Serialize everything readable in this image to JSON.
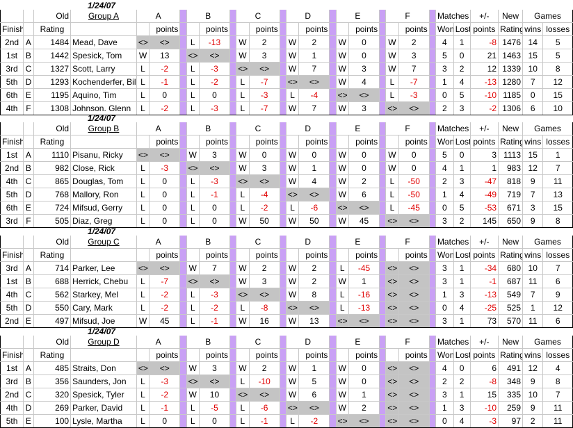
{
  "header": {
    "finish": "Finish",
    "old": "Old",
    "rating": "Rating",
    "cols": [
      "A",
      "B",
      "C",
      "D",
      "E",
      "F"
    ],
    "points": "points",
    "matches": "Matches",
    "won": "Won",
    "lost": "Lost",
    "pm": "+/-",
    "pts": "points",
    "new": "New",
    "new_rating": "Rating",
    "games": "Games",
    "wins": "wins",
    "losses": "losses",
    "self_mark": "<>"
  },
  "groups": [
    {
      "date": "1/24/07",
      "name": "Group A",
      "players": [
        {
          "finish": "2nd",
          "letter": "A",
          "old": "1484",
          "name": "Mead, Dave",
          "res": [
            [
              "<>",
              "<>"
            ],
            [
              "L",
              "-13"
            ],
            [
              "W",
              "2"
            ],
            [
              "W",
              "2"
            ],
            [
              "W",
              "0"
            ],
            [
              "W",
              "2"
            ]
          ],
          "won": "4",
          "lost": "1",
          "pm": "-8",
          "new": "1476",
          "wins": "14",
          "losses": "5"
        },
        {
          "finish": "1st",
          "letter": "B",
          "old": "1442",
          "name": "Spesick, Tom",
          "res": [
            [
              "W",
              "13"
            ],
            [
              "<>",
              "<>"
            ],
            [
              "W",
              "3"
            ],
            [
              "W",
              "1"
            ],
            [
              "W",
              "0"
            ],
            [
              "W",
              "3"
            ]
          ],
          "won": "5",
          "lost": "0",
          "pm": "21",
          "new": "1463",
          "wins": "15",
          "losses": "5"
        },
        {
          "finish": "3rd",
          "letter": "C",
          "old": "1327",
          "name": "Scott, Larry",
          "res": [
            [
              "L",
              "-2"
            ],
            [
              "L",
              "-3"
            ],
            [
              "<>",
              "<>"
            ],
            [
              "W",
              "7"
            ],
            [
              "W",
              "3"
            ],
            [
              "W",
              "7"
            ]
          ],
          "won": "3",
          "lost": "2",
          "pm": "12",
          "new": "1339",
          "wins": "10",
          "losses": "8"
        },
        {
          "finish": "5th",
          "letter": "D",
          "old": "1293",
          "name": "Kochenderfer, Bill",
          "res": [
            [
              "L",
              "-1"
            ],
            [
              "L",
              "-2"
            ],
            [
              "L",
              "-7"
            ],
            [
              "<>",
              "<>"
            ],
            [
              "W",
              "4"
            ],
            [
              "L",
              "-7"
            ]
          ],
          "won": "1",
          "lost": "4",
          "pm": "-13",
          "new": "1280",
          "wins": "7",
          "losses": "12"
        },
        {
          "finish": "6th",
          "letter": "E",
          "old": "1195",
          "name": "Aquino, Tim",
          "res": [
            [
              "L",
              "0"
            ],
            [
              "L",
              "0"
            ],
            [
              "L",
              "-3"
            ],
            [
              "L",
              "-4"
            ],
            [
              "<>",
              "<>"
            ],
            [
              "L",
              "-3"
            ]
          ],
          "won": "0",
          "lost": "5",
          "pm": "-10",
          "new": "1185",
          "wins": "0",
          "losses": "15"
        },
        {
          "finish": "4th",
          "letter": "F",
          "old": "1308",
          "name": "Johnson. Glenn",
          "res": [
            [
              "L",
              "-2"
            ],
            [
              "L",
              "-3"
            ],
            [
              "L",
              "-7"
            ],
            [
              "W",
              "7"
            ],
            [
              "W",
              "3"
            ],
            [
              "<>",
              "<>"
            ]
          ],
          "won": "2",
          "lost": "3",
          "pm": "-2",
          "new": "1306",
          "wins": "6",
          "losses": "10"
        }
      ]
    },
    {
      "date": "1/24/07",
      "name": "Group B",
      "players": [
        {
          "finish": "1st",
          "letter": "A",
          "old": "1110",
          "name": "Pisanu, Ricky",
          "res": [
            [
              "<>",
              "<>"
            ],
            [
              "W",
              "3"
            ],
            [
              "W",
              "0"
            ],
            [
              "W",
              "0"
            ],
            [
              "W",
              "0"
            ],
            [
              "W",
              "0"
            ]
          ],
          "won": "5",
          "lost": "0",
          "pm": "3",
          "new": "1113",
          "wins": "15",
          "losses": "1"
        },
        {
          "finish": "2nd",
          "letter": "B",
          "old": "982",
          "name": "Close, Rick",
          "res": [
            [
              "L",
              "-3"
            ],
            [
              "<>",
              "<>"
            ],
            [
              "W",
              "3"
            ],
            [
              "W",
              "1"
            ],
            [
              "W",
              "0"
            ],
            [
              "W",
              "0"
            ]
          ],
          "won": "4",
          "lost": "1",
          "pm": "1",
          "new": "983",
          "wins": "12",
          "losses": "7"
        },
        {
          "finish": "4th",
          "letter": "C",
          "old": "865",
          "name": "Douglas, Tom",
          "res": [
            [
              "L",
              "0"
            ],
            [
              "L",
              "-3"
            ],
            [
              "<>",
              "<>"
            ],
            [
              "W",
              "4"
            ],
            [
              "W",
              "2"
            ],
            [
              "L",
              "-50"
            ]
          ],
          "won": "2",
          "lost": "3",
          "pm": "-47",
          "new": "818",
          "wins": "9",
          "losses": "11"
        },
        {
          "finish": "5th",
          "letter": "D",
          "old": "768",
          "name": "Mallory, Ron",
          "res": [
            [
              "L",
              "0"
            ],
            [
              "L",
              "-1"
            ],
            [
              "L",
              "-4"
            ],
            [
              "<>",
              "<>"
            ],
            [
              "W",
              "6"
            ],
            [
              "L",
              "-50"
            ]
          ],
          "won": "1",
          "lost": "4",
          "pm": "-49",
          "new": "719",
          "wins": "7",
          "losses": "13"
        },
        {
          "finish": "6th",
          "letter": "E",
          "old": "724",
          "name": "Mifsud, Gerry",
          "res": [
            [
              "L",
              "0"
            ],
            [
              "L",
              "0"
            ],
            [
              "L",
              "-2"
            ],
            [
              "L",
              "-6"
            ],
            [
              "<>",
              "<>"
            ],
            [
              "L",
              "-45"
            ]
          ],
          "won": "0",
          "lost": "5",
          "pm": "-53",
          "new": "671",
          "wins": "3",
          "losses": "15"
        },
        {
          "finish": "3rd",
          "letter": "F",
          "old": "505",
          "name": "Diaz, Greg",
          "res": [
            [
              "L",
              "0"
            ],
            [
              "L",
              "0"
            ],
            [
              "W",
              "50"
            ],
            [
              "W",
              "50"
            ],
            [
              "W",
              "45"
            ],
            [
              "<>",
              "<>"
            ]
          ],
          "won": "3",
          "lost": "2",
          "pm": "145",
          "new": "650",
          "wins": "9",
          "losses": "8"
        }
      ]
    },
    {
      "date": "1/24/07",
      "name": "Group C",
      "players": [
        {
          "finish": "3rd",
          "letter": "A",
          "old": "714",
          "name": "Parker, Lee",
          "res": [
            [
              "<>",
              "<>"
            ],
            [
              "W",
              "7"
            ],
            [
              "W",
              "2"
            ],
            [
              "W",
              "2"
            ],
            [
              "L",
              "-45"
            ],
            [
              "<>",
              "<>"
            ]
          ],
          "won": "3",
          "lost": "1",
          "pm": "-34",
          "new": "680",
          "wins": "10",
          "losses": "7"
        },
        {
          "finish": "1st",
          "letter": "B",
          "old": "688",
          "name": "Herrick, Chebu",
          "res": [
            [
              "L",
              "-7"
            ],
            [
              "<>",
              "<>"
            ],
            [
              "W",
              "3"
            ],
            [
              "W",
              "2"
            ],
            [
              "W",
              "1"
            ],
            [
              "<>",
              "<>"
            ]
          ],
          "won": "3",
          "lost": "1",
          "pm": "-1",
          "new": "687",
          "wins": "11",
          "losses": "6"
        },
        {
          "finish": "4th",
          "letter": "C",
          "old": "562",
          "name": "Starkey, Mel",
          "res": [
            [
              "L",
              "-2"
            ],
            [
              "L",
              "-3"
            ],
            [
              "<>",
              "<>"
            ],
            [
              "W",
              "8"
            ],
            [
              "L",
              "-16"
            ],
            [
              "<>",
              "<>"
            ]
          ],
          "won": "1",
          "lost": "3",
          "pm": "-13",
          "new": "549",
          "wins": "7",
          "losses": "9"
        },
        {
          "finish": "5th",
          "letter": "D",
          "old": "550",
          "name": "Cary, Mark",
          "res": [
            [
              "L",
              "-2"
            ],
            [
              "L",
              "-2"
            ],
            [
              "L",
              "-8"
            ],
            [
              "<>",
              "<>"
            ],
            [
              "L",
              "-13"
            ],
            [
              "<>",
              "<>"
            ]
          ],
          "won": "0",
          "lost": "4",
          "pm": "-25",
          "new": "525",
          "wins": "1",
          "losses": "12"
        },
        {
          "finish": "2nd",
          "letter": "E",
          "old": "497",
          "name": "Mifsud, Joe",
          "res": [
            [
              "W",
              "45"
            ],
            [
              "L",
              "-1"
            ],
            [
              "W",
              "16"
            ],
            [
              "W",
              "13"
            ],
            [
              "<>",
              "<>"
            ],
            [
              "<>",
              "<>"
            ]
          ],
          "won": "3",
          "lost": "1",
          "pm": "73",
          "new": "570",
          "wins": "11",
          "losses": "6"
        }
      ]
    },
    {
      "date": "1/24/07",
      "name": "Group D",
      "players": [
        {
          "finish": "1st",
          "letter": "A",
          "old": "485",
          "name": "Straits, Don",
          "res": [
            [
              "<>",
              "<>"
            ],
            [
              "W",
              "3"
            ],
            [
              "W",
              "2"
            ],
            [
              "W",
              "1"
            ],
            [
              "W",
              "0"
            ],
            [
              "<>",
              "<>"
            ]
          ],
          "won": "4",
          "lost": "0",
          "pm": "6",
          "new": "491",
          "wins": "12",
          "losses": "4"
        },
        {
          "finish": "3rd",
          "letter": "B",
          "old": "356",
          "name": "Saunders, Jon",
          "res": [
            [
              "L",
              "-3"
            ],
            [
              "<>",
              "<>"
            ],
            [
              "L",
              "-10"
            ],
            [
              "W",
              "5"
            ],
            [
              "W",
              "0"
            ],
            [
              "<>",
              "<>"
            ]
          ],
          "won": "2",
          "lost": "2",
          "pm": "-8",
          "new": "348",
          "wins": "9",
          "losses": "8"
        },
        {
          "finish": "2nd",
          "letter": "C",
          "old": "320",
          "name": "Spesick, Tyler",
          "res": [
            [
              "L",
              "-2"
            ],
            [
              "W",
              "10"
            ],
            [
              "<>",
              "<>"
            ],
            [
              "W",
              "6"
            ],
            [
              "W",
              "1"
            ],
            [
              "<>",
              "<>"
            ]
          ],
          "won": "3",
          "lost": "1",
          "pm": "15",
          "new": "335",
          "wins": "10",
          "losses": "7"
        },
        {
          "finish": "4th",
          "letter": "D",
          "old": "269",
          "name": "Parker, David",
          "res": [
            [
              "L",
              "-1"
            ],
            [
              "L",
              "-5"
            ],
            [
              "L",
              "-6"
            ],
            [
              "<>",
              "<>"
            ],
            [
              "W",
              "2"
            ],
            [
              "<>",
              "<>"
            ]
          ],
          "won": "1",
          "lost": "3",
          "pm": "-10",
          "new": "259",
          "wins": "9",
          "losses": "11"
        },
        {
          "finish": "5th",
          "letter": "E",
          "old": "100",
          "name": "Lysle, Martha",
          "res": [
            [
              "L",
              "0"
            ],
            [
              "L",
              "0"
            ],
            [
              "L",
              "-1"
            ],
            [
              "L",
              "-2"
            ],
            [
              "<>",
              "<>"
            ],
            [
              "<>",
              "<>"
            ]
          ],
          "won": "0",
          "lost": "4",
          "pm": "-3",
          "new": "97",
          "wins": "2",
          "losses": "11"
        }
      ]
    }
  ],
  "colors": {
    "bar": "#c9a0f5",
    "self": "#c4c4c4",
    "negative": "#e00000"
  }
}
